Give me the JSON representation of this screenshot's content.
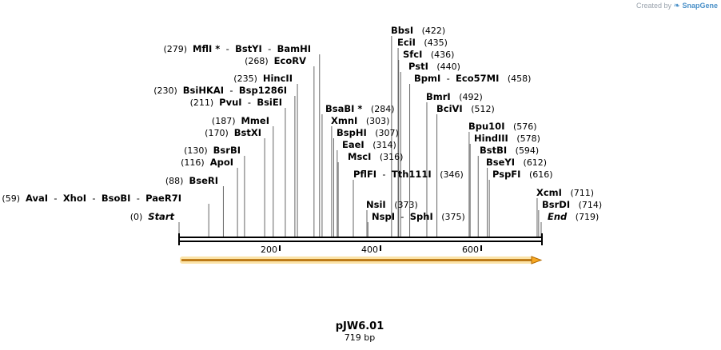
{
  "credit": {
    "prefix": "Created by",
    "icon": "snapgene-leaf-icon",
    "brand": "SnapGene"
  },
  "sequence": {
    "name": "pJW6.01",
    "length_label": "719 bp",
    "length": 719
  },
  "axis": {
    "ticks": [
      200,
      400,
      600
    ]
  },
  "colors": {
    "feature_fill": "#f7a823",
    "feature_stroke": "#b36a00",
    "feature_glow": "#fbe3a8",
    "backbone": "#000000",
    "cut_line": "#666666"
  },
  "sites": [
    {
      "pos": 0,
      "label": "(0)",
      "names": [
        "Start"
      ],
      "side": "left",
      "endpoint": true
    },
    {
      "pos": 59,
      "label": "(59)",
      "names": [
        "AvaI",
        "XhoI",
        "BsoBI",
        "PaeR7I"
      ],
      "side": "left"
    },
    {
      "pos": 88,
      "label": "(88)",
      "names": [
        "BseRI"
      ],
      "side": "left"
    },
    {
      "pos": 116,
      "label": "(116)",
      "names": [
        "ApoI"
      ],
      "side": "left"
    },
    {
      "pos": 130,
      "label": "(130)",
      "names": [
        "BsrBI"
      ],
      "side": "left"
    },
    {
      "pos": 170,
      "label": "(170)",
      "names": [
        "BstXI"
      ],
      "side": "left"
    },
    {
      "pos": 187,
      "label": "(187)",
      "names": [
        "MmeI"
      ],
      "side": "left"
    },
    {
      "pos": 211,
      "label": "(211)",
      "names": [
        "PvuI",
        "BsiEI"
      ],
      "side": "left"
    },
    {
      "pos": 230,
      "label": "(230)",
      "names": [
        "BsiHKAI",
        "Bsp1286I"
      ],
      "side": "left"
    },
    {
      "pos": 235,
      "label": "(235)",
      "names": [
        "HincII"
      ],
      "side": "left"
    },
    {
      "pos": 268,
      "label": "(268)",
      "names": [
        "EcoRV"
      ],
      "side": "left"
    },
    {
      "pos": 279,
      "label": "(279)",
      "names": [
        "MflI *",
        "BstYI",
        "BamHI"
      ],
      "side": "left"
    },
    {
      "pos": 284,
      "label": "(284)",
      "names": [
        "BsaBI *"
      ],
      "side": "right"
    },
    {
      "pos": 303,
      "label": "(303)",
      "names": [
        "XmnI"
      ],
      "side": "right"
    },
    {
      "pos": 307,
      "label": "(307)",
      "names": [
        "BspHI"
      ],
      "side": "right"
    },
    {
      "pos": 314,
      "label": "(314)",
      "names": [
        "EaeI"
      ],
      "side": "right"
    },
    {
      "pos": 316,
      "label": "(316)",
      "names": [
        "MscI"
      ],
      "side": "right"
    },
    {
      "pos": 346,
      "label": "(346)",
      "names": [
        "PflFI",
        "Tth111I"
      ],
      "side": "right"
    },
    {
      "pos": 373,
      "label": "(373)",
      "names": [
        "NsiI"
      ],
      "side": "right"
    },
    {
      "pos": 375,
      "label": "(375)",
      "names": [
        "NspI",
        "SphI"
      ],
      "side": "right"
    },
    {
      "pos": 422,
      "label": "(422)",
      "names": [
        "BbsI"
      ],
      "side": "right"
    },
    {
      "pos": 435,
      "label": "(435)",
      "names": [
        "EciI"
      ],
      "side": "right"
    },
    {
      "pos": 436,
      "label": "(436)",
      "names": [
        "SfcI"
      ],
      "side": "right"
    },
    {
      "pos": 440,
      "label": "(440)",
      "names": [
        "PstI"
      ],
      "side": "right"
    },
    {
      "pos": 458,
      "label": "(458)",
      "names": [
        "BpmI",
        "Eco57MI"
      ],
      "side": "right"
    },
    {
      "pos": 492,
      "label": "(492)",
      "names": [
        "BmrI"
      ],
      "side": "right"
    },
    {
      "pos": 512,
      "label": "(512)",
      "names": [
        "BciVI"
      ],
      "side": "right"
    },
    {
      "pos": 576,
      "label": "(576)",
      "names": [
        "Bpu10I"
      ],
      "side": "right"
    },
    {
      "pos": 578,
      "label": "(578)",
      "names": [
        "HindIII"
      ],
      "side": "right"
    },
    {
      "pos": 594,
      "label": "(594)",
      "names": [
        "BstBI"
      ],
      "side": "right"
    },
    {
      "pos": 612,
      "label": "(612)",
      "names": [
        "BseYI"
      ],
      "side": "right"
    },
    {
      "pos": 616,
      "label": "(616)",
      "names": [
        "PspFI"
      ],
      "side": "right"
    },
    {
      "pos": 711,
      "label": "(711)",
      "names": [
        "XcmI"
      ],
      "side": "right"
    },
    {
      "pos": 714,
      "label": "(714)",
      "names": [
        "BsrDI"
      ],
      "side": "right"
    },
    {
      "pos": 719,
      "label": "(719)",
      "names": [
        "End"
      ],
      "side": "right",
      "endpoint": true
    }
  ]
}
